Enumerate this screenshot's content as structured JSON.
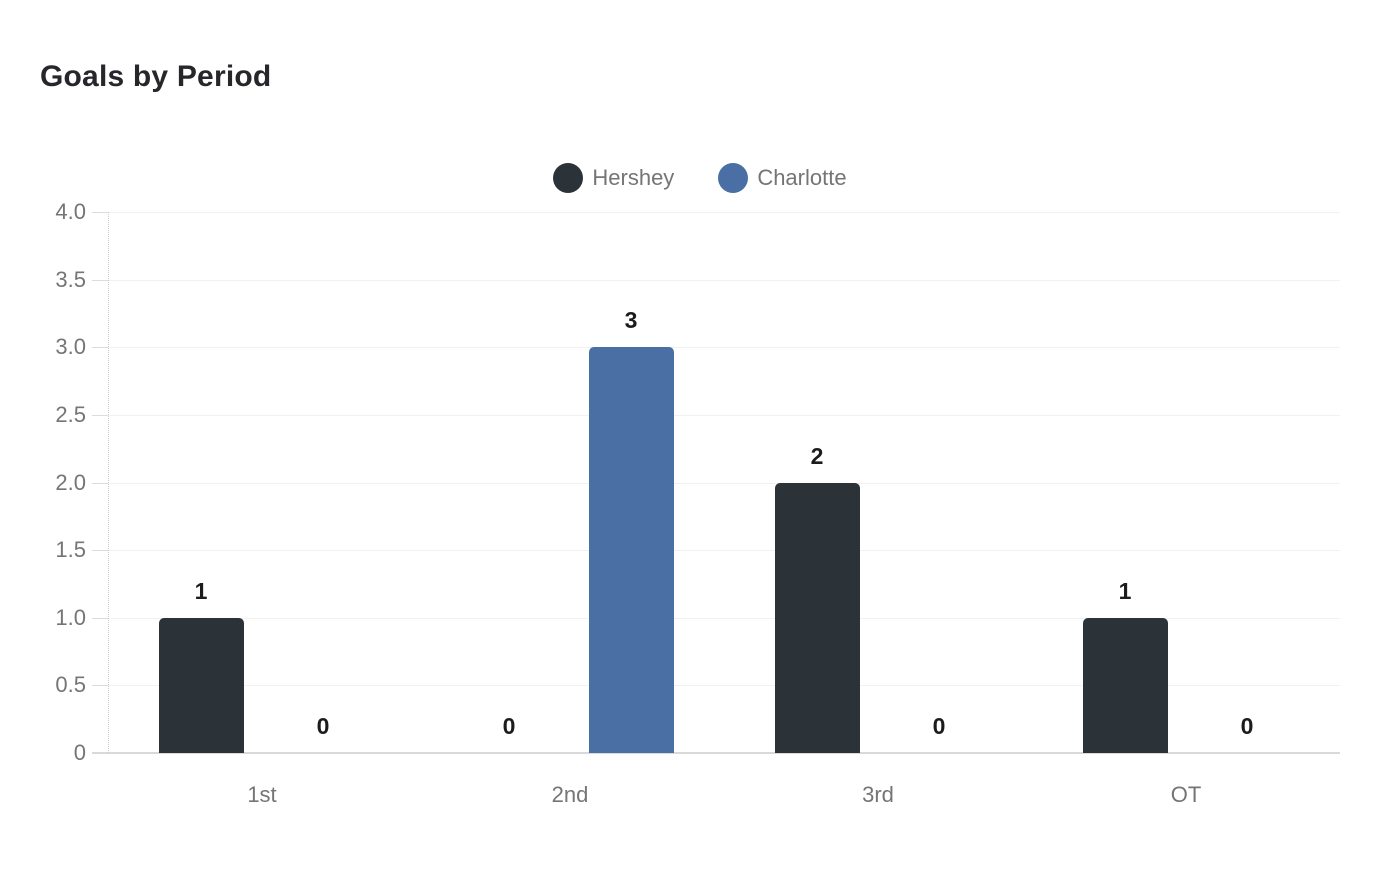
{
  "chart_data": {
    "type": "bar",
    "title": "Goals by Period",
    "categories": [
      "1st",
      "2nd",
      "3rd",
      "OT"
    ],
    "series": [
      {
        "name": "Hershey",
        "color": "#2b3338",
        "values": [
          1,
          0,
          2,
          1
        ]
      },
      {
        "name": "Charlotte",
        "color": "#4a6fa5",
        "values": [
          0,
          3,
          0,
          0
        ]
      }
    ],
    "ylim": [
      0,
      4
    ],
    "ytick_step": 0.5,
    "ytick_labels": [
      "0",
      "0.5",
      "1.0",
      "1.5",
      "2.0",
      "2.5",
      "3.0",
      "3.5",
      "4.0"
    ],
    "grid": true,
    "legend_position": "top-center",
    "bar_value_labels": true,
    "colors": {
      "axis_text": "#757575",
      "value_label": "#1c1c1c",
      "gridline": "#f1f1f1",
      "axis_line": "#d9d9d9"
    }
  }
}
